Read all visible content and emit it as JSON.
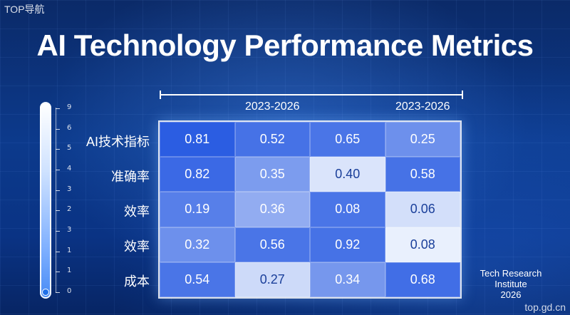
{
  "watermark": {
    "top_left": "TOP导航",
    "bottom_right": "top.gd.cn"
  },
  "title": "AI Technology Performance Metrics",
  "footnote": [
    "Tech Research",
    "Institute",
    "2026"
  ],
  "colors": {
    "background": "#0b2a68",
    "cell_scale": [
      "#f4f8ff",
      "#1a50e0"
    ]
  },
  "chart_data": {
    "type": "heatmap",
    "column_headers": [
      "",
      "2023-2026",
      "",
      "2023-2026"
    ],
    "rows": [
      "AI技术指标",
      "准确率",
      "效率",
      "效率",
      "成本"
    ],
    "values": [
      [
        0.81,
        0.52,
        0.65,
        0.25
      ],
      [
        0.82,
        0.35,
        0.4,
        0.58
      ],
      [
        0.19,
        0.36,
        0.08,
        0.06
      ],
      [
        0.32,
        0.56,
        0.92,
        0.08
      ],
      [
        0.54,
        0.27,
        0.34,
        0.68
      ]
    ],
    "cell_labels": [
      [
        "0.81",
        "0.52",
        "0.65",
        "0.25"
      ],
      [
        "0.82",
        "0.35",
        "0.40",
        "0.58"
      ],
      [
        "0.19",
        "0.36",
        "0.08",
        "0.06"
      ],
      [
        "0.32",
        "0.56",
        "0.92",
        "0.08"
      ],
      [
        "0.54",
        "0.27",
        "0.34",
        "0.68"
      ]
    ],
    "cell_shading": [
      [
        0.92,
        0.8,
        0.78,
        0.62
      ],
      [
        0.85,
        0.55,
        0.12,
        0.8
      ],
      [
        0.72,
        0.45,
        0.78,
        0.15
      ],
      [
        0.62,
        0.78,
        0.8,
        0.05
      ],
      [
        0.78,
        0.18,
        0.58,
        0.82
      ]
    ],
    "dark_text_cells": [
      [
        1,
        2
      ],
      [
        2,
        3
      ],
      [
        3,
        3
      ],
      [
        4,
        1
      ]
    ],
    "scale_ticks": [
      "9",
      "6",
      "5",
      "4",
      "3",
      "2",
      "3",
      "1",
      "1",
      "0"
    ]
  }
}
